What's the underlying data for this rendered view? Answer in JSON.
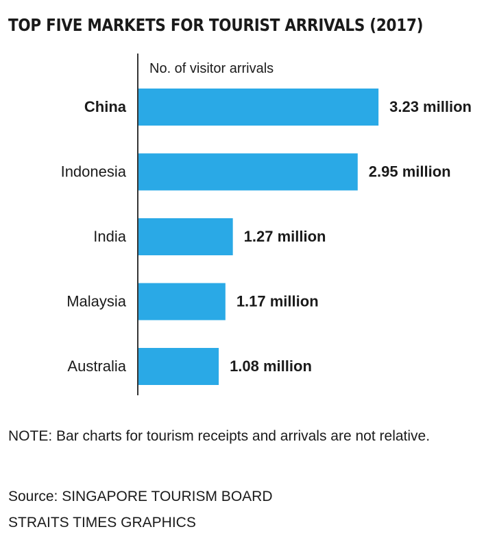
{
  "chart_data": {
    "type": "bar",
    "orientation": "horizontal",
    "title": "TOP FIVE MARKETS FOR TOURIST ARRIVALS (2017)",
    "axis_caption": "No. of visitor arrivals",
    "categories": [
      "China",
      "Indonesia",
      "India",
      "Malaysia",
      "Australia"
    ],
    "values": [
      3.23,
      2.95,
      1.27,
      1.17,
      1.08
    ],
    "value_labels": [
      "3.23 million",
      "2.95 million",
      "1.27 million",
      "1.17 million",
      "1.08 million"
    ],
    "bold_categories": [
      "China"
    ],
    "unit": "million",
    "grid": false,
    "legend": "none",
    "bar_color": "#2aa9e6",
    "axis_color": "#333333"
  },
  "note": "NOTE: Bar charts for tourism receipts and arrivals are not relative.",
  "source_line_1": "Source: SINGAPORE TOURISM BOARD",
  "source_line_2": "STRAITS TIMES GRAPHICS"
}
